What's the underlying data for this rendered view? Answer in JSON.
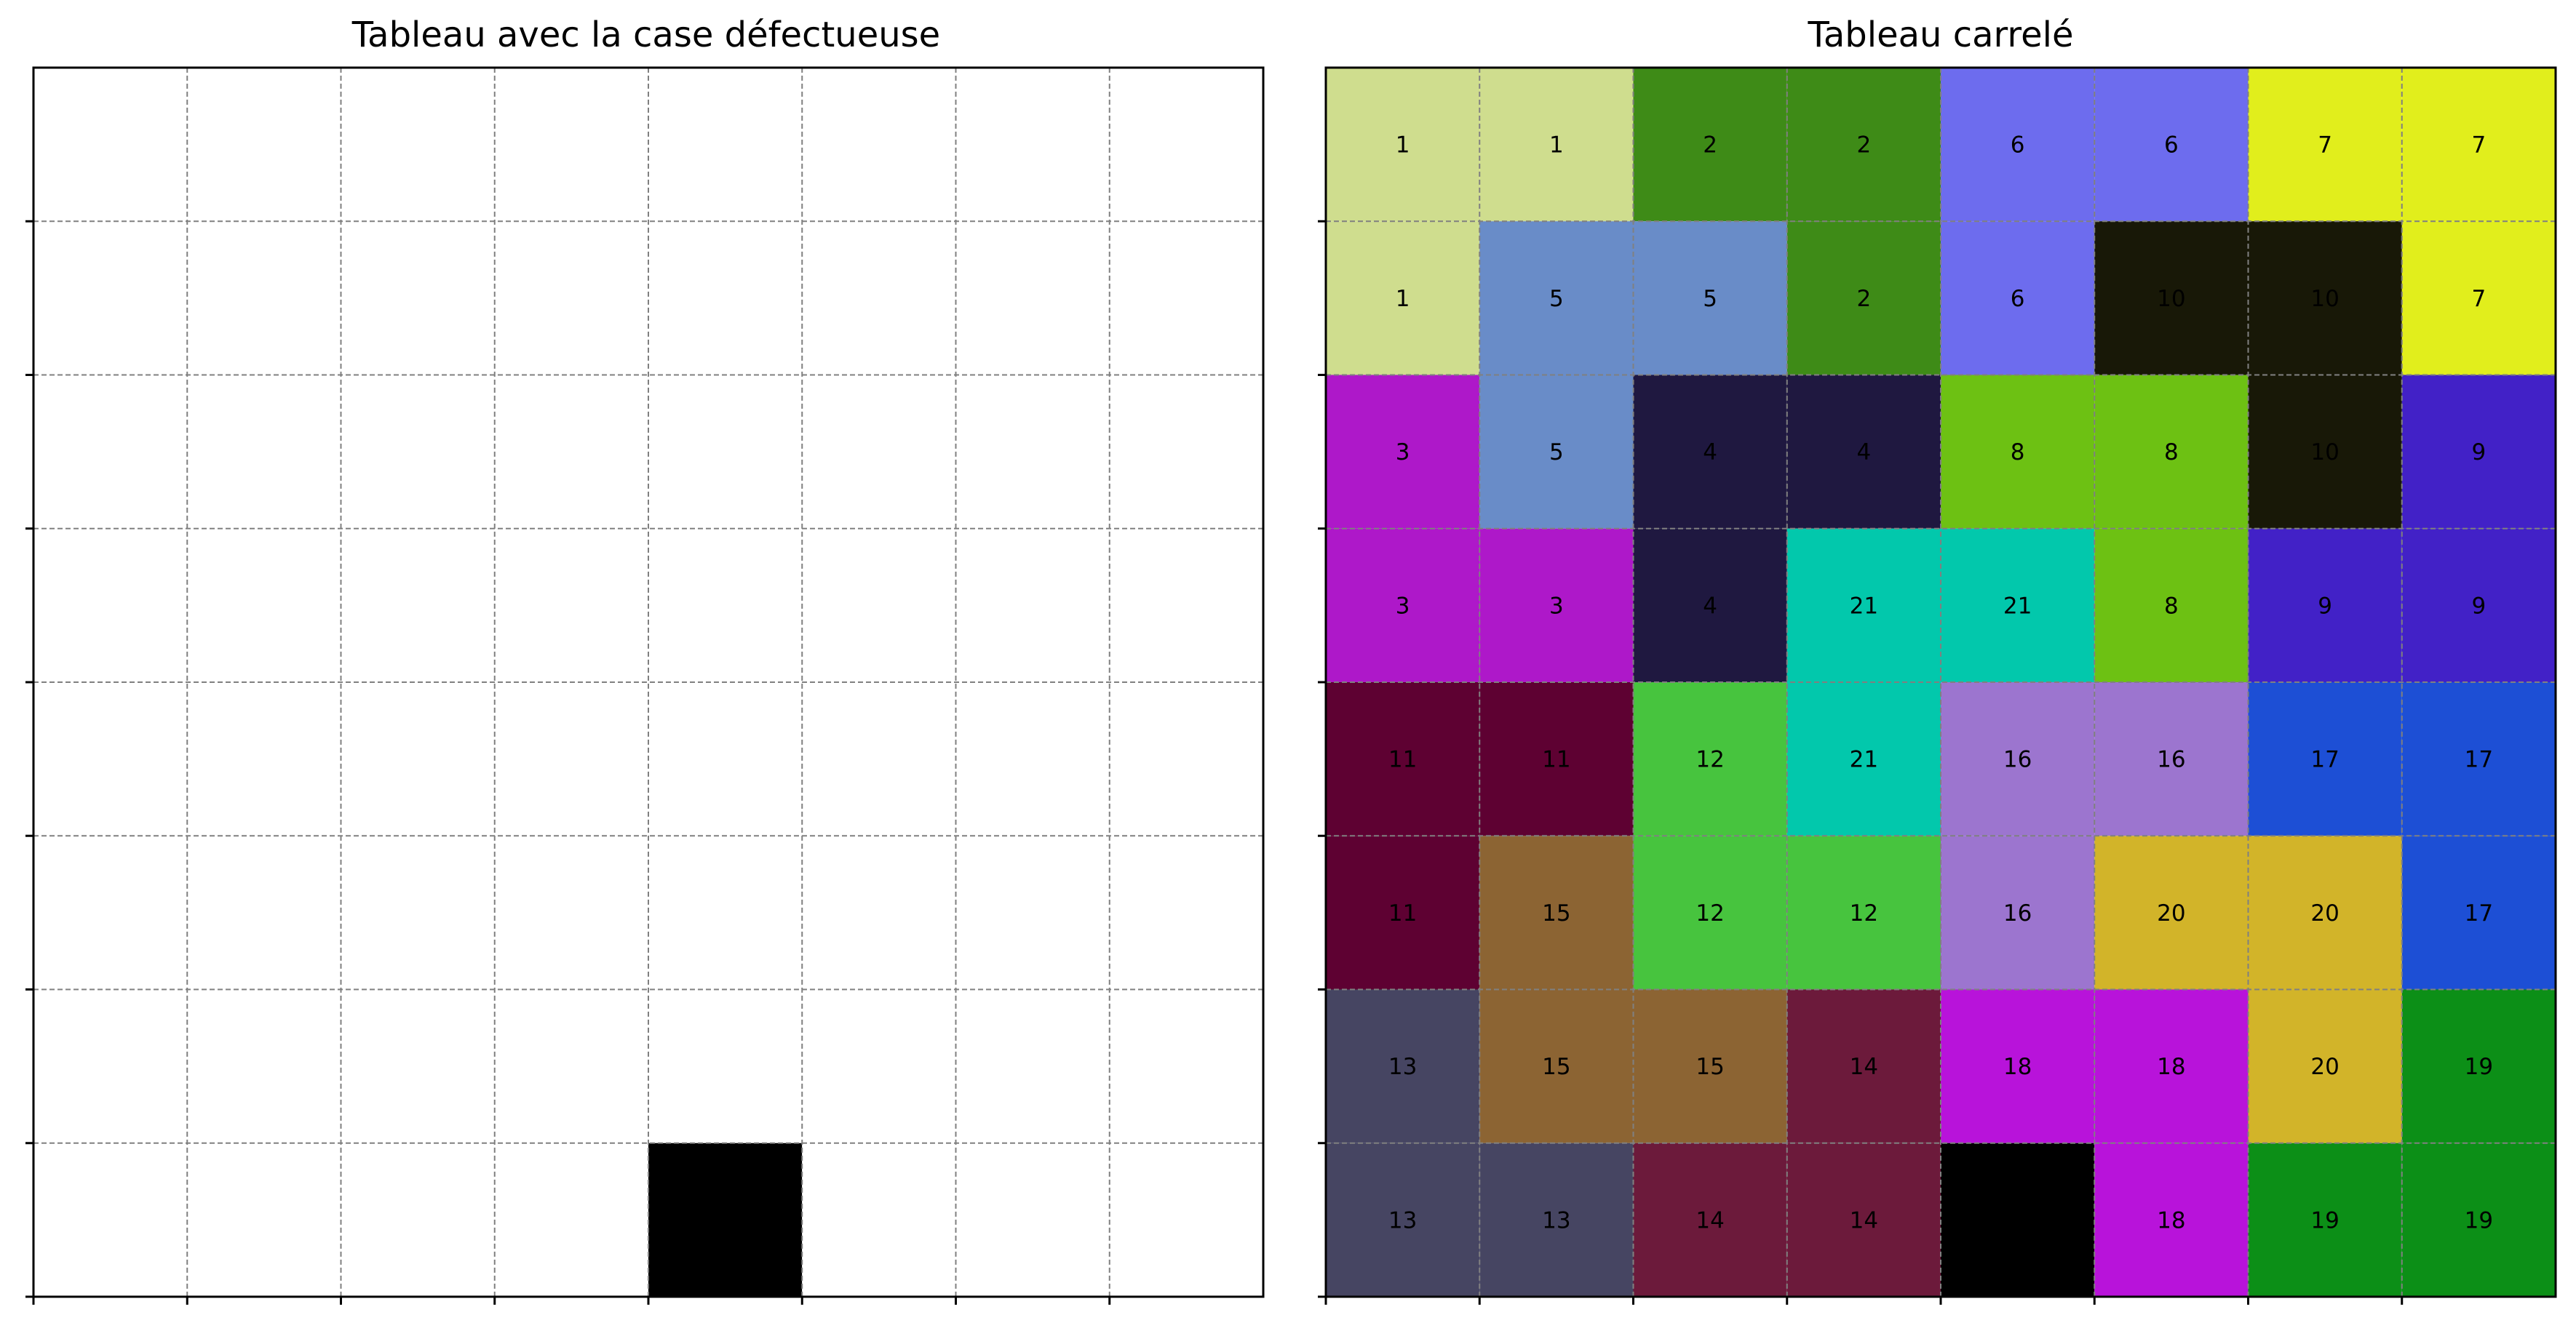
{
  "panels": {
    "left": {
      "title": "Tableau avec la case défectueuse"
    },
    "right": {
      "title": "Tableau carrelé"
    }
  },
  "chart_data": [
    {
      "type": "heatmap",
      "title": "Tableau avec la case défectueuse",
      "rows": 8,
      "cols": 8,
      "defective_cell": {
        "row": 7,
        "col": 4
      },
      "grid": true,
      "cell_color": "#ffffff",
      "defect_color": "#000000"
    },
    {
      "type": "heatmap",
      "title": "Tableau carrelé",
      "rows": 8,
      "cols": 8,
      "grid": true,
      "defective_cell": {
        "row": 7,
        "col": 4
      },
      "labels": [
        [
          1,
          1,
          2,
          2,
          6,
          6,
          7,
          7
        ],
        [
          1,
          5,
          5,
          2,
          6,
          10,
          10,
          7
        ],
        [
          3,
          5,
          4,
          4,
          8,
          8,
          10,
          9
        ],
        [
          3,
          3,
          4,
          21,
          21,
          8,
          9,
          9
        ],
        [
          11,
          11,
          12,
          21,
          16,
          16,
          17,
          17
        ],
        [
          11,
          15,
          12,
          12,
          16,
          20,
          20,
          17
        ],
        [
          13,
          15,
          15,
          14,
          18,
          18,
          20,
          19
        ],
        [
          13,
          13,
          14,
          14,
          null,
          18,
          19,
          19
        ]
      ],
      "tile_colors": {
        "1": "#cfdd8e",
        "2": "#3e8b17",
        "3": "#ae18c9",
        "4": "#1f1840",
        "5": "#698cc8",
        "6": "#6d6cee",
        "7": "#e1ee1c",
        "8": "#6dc113",
        "9": "#4221c7",
        "10": "#181807",
        "11": "#5e0132",
        "12": "#47c43e",
        "13": "#464562",
        "14": "#6c1a3b",
        "15": "#8c6433",
        "16": "#9c75cf",
        "17": "#1d4fd5",
        "18": "#b813da",
        "19": "#0c8f17",
        "20": "#d2b429",
        "21": "#02c8ac",
        "defect": "#000000"
      }
    }
  ]
}
